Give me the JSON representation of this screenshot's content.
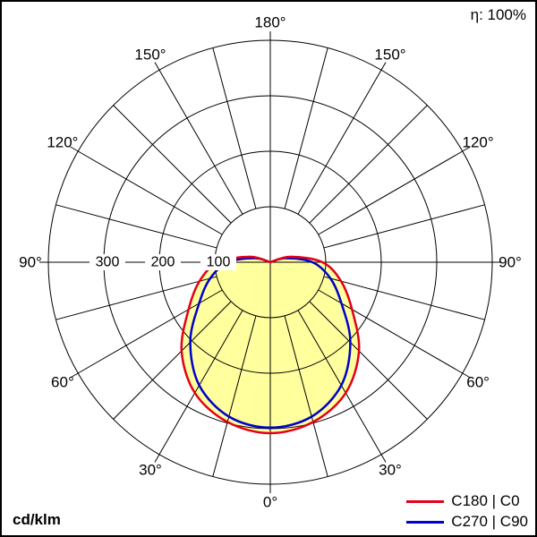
{
  "header": {
    "efficiency": "η: 100%"
  },
  "footer": {
    "unit": "cd/klm"
  },
  "legend": [
    {
      "label": "C180 | C0",
      "color": "#e2001a"
    },
    {
      "label": "C270 | C90",
      "color": "#0000cc"
    }
  ],
  "chart_data": {
    "type": "line",
    "coordinate_system": "polar",
    "unit": "cd/klm",
    "efficiency_label": "η: 100%",
    "angle_labels": [
      "0°",
      "30°",
      "60°",
      "90°",
      "120°",
      "150°",
      "180°"
    ],
    "angle_step_deg": 15,
    "radial_ticks": [
      100,
      200,
      300
    ],
    "radial_max": 400,
    "gamma_deg": [
      0,
      15,
      30,
      45,
      60,
      75,
      90,
      105,
      120
    ],
    "series": [
      {
        "name": "C180 | C0",
        "color": "#e2001a",
        "values": [
          308,
          298,
          272,
          226,
          170,
          132,
          94,
          38,
          0
        ]
      },
      {
        "name": "C270 | C90",
        "color": "#0000cc",
        "values": [
          298,
          288,
          256,
          204,
          148,
          112,
          76,
          28,
          0
        ]
      }
    ],
    "fill_color": "#ffff9e",
    "grid_color": "#000000",
    "legend_position": "bottom-right"
  }
}
